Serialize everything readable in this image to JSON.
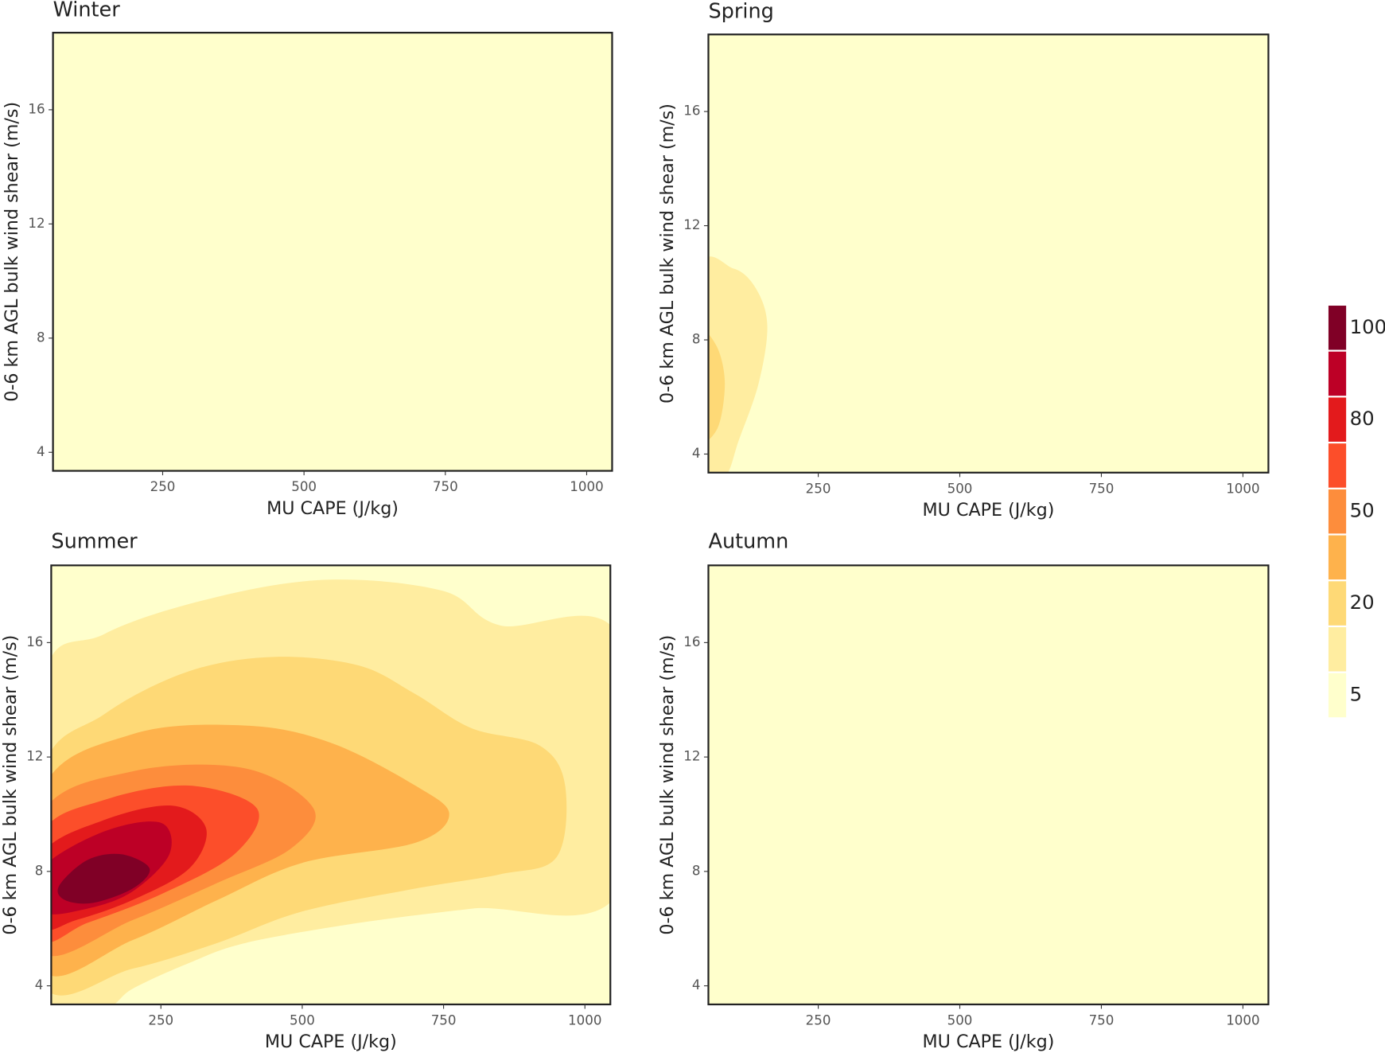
{
  "chart_data": [
    {
      "type": "contour",
      "title": "Winter",
      "x_label": "MU CAPE (J/kg)",
      "y_label": "0-6 km AGL bulk wind shear (m/s)",
      "xlim": [
        56,
        1045
      ],
      "ylim": [
        3.35,
        18.7
      ],
      "xticks": [
        250,
        500,
        750,
        1000
      ],
      "yticks": [
        4,
        8,
        12,
        16
      ],
      "background": "#FFFFCC",
      "contours": []
    },
    {
      "type": "contour",
      "title": "Spring",
      "x_label": "MU CAPE (J/kg)",
      "y_label": "0-6 km AGL bulk wind shear (m/s)",
      "xlim": [
        56,
        1045
      ],
      "ylim": [
        3.35,
        18.7
      ],
      "xticks": [
        250,
        500,
        750,
        1000
      ],
      "yticks": [
        4,
        8,
        12,
        16
      ],
      "background": "#FFFFCC",
      "contours": [
        {
          "color": "#FFEDA0",
          "x": [
            40,
            100,
            140,
            160,
            145,
            110,
            85,
            40
          ],
          "y": [
            10.3,
            10.5,
            9.8,
            8.5,
            6.5,
            4.5,
            3.2,
            3.2
          ]
        },
        {
          "color": "#FED976",
          "x": [
            40,
            70,
            85,
            72,
            40
          ],
          "y": [
            8.1,
            7.8,
            6.5,
            4.9,
            4.7
          ]
        }
      ]
    },
    {
      "type": "contour",
      "title": "Summer",
      "x_label": "MU CAPE (J/kg)",
      "y_label": "0-6 km AGL bulk wind shear (m/s)",
      "xlim": [
        56,
        1045
      ],
      "ylim": [
        3.35,
        18.7
      ],
      "xticks": [
        250,
        500,
        750,
        1000
      ],
      "yticks": [
        4,
        8,
        12,
        16
      ],
      "background": "#FFFFCC",
      "contours": [
        {
          "color": "#FFEDA0",
          "x": [
            40,
            150,
            350,
            550,
            750,
            850,
            1060,
            1060,
            800,
            600,
            400,
            300,
            200,
            150,
            40
          ],
          "y": [
            14.4,
            16.3,
            17.6,
            18.2,
            17.8,
            16.6,
            16.2,
            7.3,
            6.7,
            6.2,
            5.5,
            4.8,
            3.9,
            3.2,
            3.2
          ]
        },
        {
          "color": "#FED976",
          "x": [
            40,
            150,
            300,
            450,
            600,
            700,
            800,
            920,
            965,
            950,
            850,
            700,
            500,
            350,
            200,
            40
          ],
          "y": [
            11.4,
            13.5,
            15,
            15.5,
            15.2,
            14.2,
            13,
            12.4,
            11,
            8.5,
            7.9,
            7.4,
            6.6,
            5.5,
            4.6,
            4.1
          ]
        },
        {
          "color": "#FEB24C",
          "x": [
            40,
            200,
            400,
            550,
            700,
            760,
            700,
            500,
            350,
            200,
            40
          ],
          "y": [
            10.8,
            12.8,
            13.1,
            12.5,
            11,
            10,
            9,
            8.3,
            7,
            5.6,
            4.6
          ]
        },
        {
          "color": "#FD8D3C",
          "x": [
            40,
            200,
            400,
            520,
            480,
            350,
            200,
            40
          ],
          "y": [
            10,
            11.5,
            11.6,
            10.2,
            8.8,
            7.6,
            6.3,
            5.2
          ]
        },
        {
          "color": "#FC4E2A",
          "x": [
            40,
            150,
            300,
            420,
            380,
            250,
            120,
            40
          ],
          "y": [
            9.3,
            10.5,
            11,
            10.2,
            8.6,
            7.2,
            6.2,
            5.7
          ]
        },
        {
          "color": "#E31A1C",
          "x": [
            40,
            150,
            270,
            330,
            300,
            200,
            100,
            40
          ],
          "y": [
            8.6,
            9.8,
            10.3,
            9.5,
            8.1,
            7,
            6.3,
            6.1
          ]
        },
        {
          "color": "#BD0026",
          "x": [
            40,
            150,
            250,
            265,
            200,
            120,
            40
          ],
          "y": [
            8.1,
            9.4,
            9.7,
            8.6,
            7.3,
            6.7,
            6.6
          ]
        },
        {
          "color": "#800026",
          "x": [
            70,
            120,
            180,
            230,
            200,
            130,
            80
          ],
          "y": [
            7.5,
            8.4,
            8.6,
            8.1,
            7.4,
            6.9,
            7
          ]
        }
      ]
    },
    {
      "type": "contour",
      "title": "Autumn",
      "x_label": "MU CAPE (J/kg)",
      "y_label": "0-6 km AGL bulk wind shear (m/s)",
      "xlim": [
        56,
        1045
      ],
      "ylim": [
        3.35,
        18.7
      ],
      "xticks": [
        250,
        500,
        750,
        1000
      ],
      "yticks": [
        4,
        8,
        12,
        16
      ],
      "background": "#FFFFCC",
      "contours": []
    }
  ],
  "colorbar": {
    "colors": [
      "#FFFFCC",
      "#FFEDA0",
      "#FED976",
      "#FEB24C",
      "#FD8D3C",
      "#FC4E2A",
      "#E31A1C",
      "#BD0026",
      "#800026"
    ],
    "levels": [
      5,
      null,
      20,
      null,
      50,
      null,
      80,
      null,
      100
    ]
  }
}
